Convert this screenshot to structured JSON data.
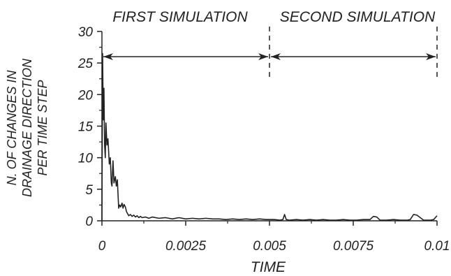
{
  "chart_data": {
    "type": "line",
    "xlabel": "TIME",
    "ylabel_lines": [
      "N. OF CHANGES IN",
      "DRAINAGE DIRECTION",
      "PER TIME STEP"
    ],
    "xlim": [
      0,
      0.01
    ],
    "ylim": [
      0,
      30
    ],
    "x_ticks": [
      0,
      0.0025,
      0.005,
      0.0075,
      0.01
    ],
    "x_tick_labels": [
      "0",
      "0.0025",
      "0.005",
      "0.0075",
      "0.01"
    ],
    "y_ticks": [
      0,
      5,
      10,
      15,
      20,
      25,
      30
    ],
    "y_tick_labels": [
      "0",
      "5",
      "10",
      "15",
      "20",
      "25",
      "30"
    ],
    "grid": false,
    "annotations": {
      "first": {
        "label": "FIRST SIMULATION",
        "x_range": [
          0,
          0.005
        ],
        "y": 26
      },
      "second": {
        "label": "SECOND SIMULATION",
        "x_range": [
          0.005,
          0.01
        ],
        "y": 26
      },
      "dashed_dividers_x": [
        0.005,
        0.01
      ]
    },
    "series": [
      {
        "color": "#222222",
        "x": [
          0,
          2e-05,
          4e-05,
          6e-05,
          8e-05,
          0.0001,
          0.00012,
          0.00015,
          0.00018,
          0.0002,
          0.00022,
          0.00025,
          0.00028,
          0.0003,
          0.00033,
          0.00036,
          0.0004,
          0.00043,
          0.00046,
          0.0005,
          0.00053,
          0.00056,
          0.0006,
          0.00063,
          0.00066,
          0.0007,
          0.00073,
          0.00076,
          0.0008,
          0.00085,
          0.0009,
          0.00095,
          0.001,
          0.00105,
          0.0011,
          0.00115,
          0.0012,
          0.0013,
          0.0014,
          0.0015,
          0.0017,
          0.0019,
          0.0021,
          0.0023,
          0.0025,
          0.0027,
          0.0029,
          0.0031,
          0.0033,
          0.0035,
          0.0037,
          0.0039,
          0.0041,
          0.0043,
          0.0045,
          0.0047,
          0.0049,
          0.005,
          0.00515,
          0.0053,
          0.0054,
          0.00545,
          0.0055,
          0.0056,
          0.0058,
          0.006,
          0.0062,
          0.0064,
          0.0066,
          0.0068,
          0.007,
          0.0072,
          0.0074,
          0.0076,
          0.0078,
          0.008,
          0.0081,
          0.0082,
          0.0083,
          0.0085,
          0.0087,
          0.0089,
          0.0091,
          0.0092,
          0.0093,
          0.0094,
          0.0096,
          0.0098,
          0.0099,
          0.01
        ],
        "y": [
          0,
          26.5,
          16,
          21,
          12,
          10,
          15.5,
          12,
          13,
          11,
          9,
          10,
          6,
          5.5,
          9.5,
          6,
          7,
          5.5,
          6.5,
          2,
          2.5,
          2.2,
          2.8,
          2,
          2.6,
          2.2,
          1.5,
          1.2,
          0.8,
          1,
          0.7,
          0.9,
          0.6,
          0.8,
          0.5,
          0.7,
          0.5,
          0.6,
          0.4,
          0.6,
          0.4,
          0.5,
          0.3,
          0.5,
          0.3,
          0.4,
          0.3,
          0.4,
          0.3,
          0.3,
          0.2,
          0.3,
          0.2,
          0.3,
          0.2,
          0.3,
          0.2,
          0.2,
          0.2,
          0.1,
          0.2,
          1.0,
          0.2,
          0.1,
          0.2,
          0.1,
          0.2,
          0.1,
          0.2,
          0.1,
          0.1,
          0.2,
          0.1,
          0.1,
          0.2,
          0.2,
          0.7,
          0.6,
          0.1,
          0.1,
          0.2,
          0.1,
          0.1,
          0.2,
          1.0,
          0.9,
          0.1,
          0.1,
          0.2,
          0.8
        ]
      }
    ]
  }
}
